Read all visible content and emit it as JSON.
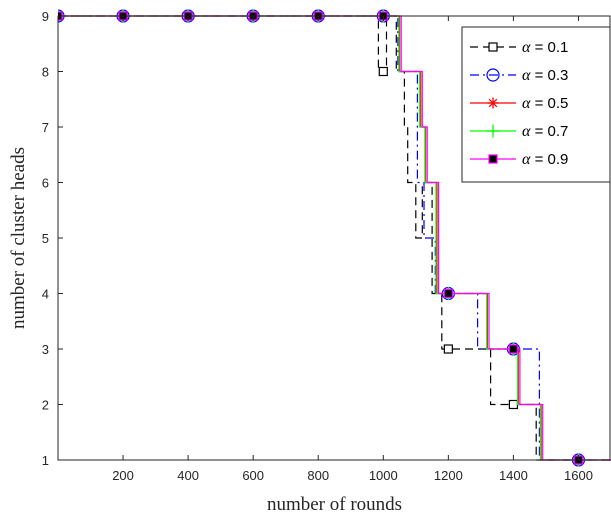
{
  "chart_data": {
    "type": "line",
    "title": "",
    "xlabel": "number of rounds",
    "ylabel": "number of cluster heads",
    "xlim": [
      0,
      1700
    ],
    "ylim": [
      1,
      9
    ],
    "x_ticks": [
      200,
      400,
      600,
      800,
      1000,
      1200,
      1400,
      1600
    ],
    "x_tick_labels": [
      "200",
      "400",
      "600",
      "800",
      "1000",
      "1200",
      "1400",
      "1600"
    ],
    "y_ticks": [
      1,
      2,
      3,
      4,
      5,
      6,
      7,
      8,
      9
    ],
    "y_tick_labels": [
      "1",
      "2",
      "3",
      "4",
      "5",
      "6",
      "7",
      "8",
      "9"
    ],
    "grid": false,
    "legend_position": "top-right",
    "series": [
      {
        "name": "α = 0.1",
        "alpha_symbol": "α",
        "value_text": "= 0.1",
        "color": "#000000",
        "dash": "dashed",
        "marker": "open-square",
        "x": [
          0,
          985,
          985,
          1010,
          1010,
          1040,
          1040,
          1065,
          1065,
          1075,
          1075,
          1100,
          1100,
          1120,
          1120,
          1150,
          1150,
          1180,
          1180,
          1200,
          1200,
          1330,
          1330,
          1400,
          1400,
          1470,
          1470,
          1700
        ],
        "y": [
          9,
          9,
          8,
          8,
          9,
          9,
          8,
          8,
          7,
          7,
          6,
          6,
          5,
          5,
          6,
          6,
          4,
          4,
          3,
          3,
          3,
          3,
          2,
          2,
          2,
          2,
          1,
          1
        ],
        "marker_x": [
          0,
          200,
          400,
          600,
          800,
          1000,
          1200,
          1400,
          1600
        ],
        "marker_y": [
          9,
          9,
          9,
          9,
          9,
          8,
          3,
          2,
          1
        ]
      },
      {
        "name": "α = 0.3",
        "alpha_symbol": "α",
        "value_text": "= 0.3",
        "color": "#0000ff",
        "dash": "dash-dot",
        "marker": "open-circle",
        "x": [
          0,
          1045,
          1045,
          1105,
          1105,
          1125,
          1125,
          1160,
          1160,
          1290,
          1290,
          1410,
          1410,
          1480,
          1480,
          1700
        ],
        "y": [
          9,
          9,
          8,
          8,
          6,
          6,
          5,
          5,
          4,
          4,
          3,
          3,
          3,
          3,
          1,
          1
        ],
        "marker_x": [
          0,
          200,
          400,
          600,
          800,
          1000,
          1200,
          1400,
          1600
        ],
        "marker_y": [
          9,
          9,
          9,
          9,
          9,
          9,
          4,
          3,
          1
        ]
      },
      {
        "name": "α = 0.5",
        "alpha_symbol": "α",
        "value_text": "= 0.5",
        "color": "#ff0000",
        "dash": "solid",
        "marker": "asterisk",
        "x": [
          0,
          1050,
          1050,
          1115,
          1115,
          1130,
          1130,
          1165,
          1165,
          1320,
          1320,
          1415,
          1415,
          1485,
          1485,
          1700
        ],
        "y": [
          9,
          9,
          8,
          8,
          7,
          7,
          6,
          6,
          4,
          4,
          3,
          3,
          2,
          2,
          1,
          1
        ],
        "marker_x": [
          0,
          200,
          400,
          600,
          800,
          1000,
          1200,
          1400,
          1600
        ],
        "marker_y": [
          9,
          9,
          9,
          9,
          9,
          9,
          4,
          3,
          1
        ]
      },
      {
        "name": "α = 0.7",
        "alpha_symbol": "α",
        "value_text": "= 0.7",
        "color": "#00ff00",
        "dash": "solid",
        "marker": "plus",
        "x": [
          0,
          1048,
          1048,
          1112,
          1112,
          1128,
          1128,
          1162,
          1162,
          1318,
          1318,
          1413,
          1413,
          1483,
          1483,
          1700
        ],
        "y": [
          9,
          9,
          8,
          8,
          7,
          7,
          6,
          6,
          4,
          4,
          3,
          3,
          2,
          2,
          1,
          1
        ],
        "marker_x": [
          0,
          200,
          400,
          600,
          800,
          1000,
          1200,
          1400,
          1600
        ],
        "marker_y": [
          9,
          9,
          9,
          9,
          9,
          9,
          4,
          3,
          1
        ]
      },
      {
        "name": "α = 0.9",
        "alpha_symbol": "α",
        "value_text": "= 0.9",
        "color": "#ff00ff",
        "dash": "solid",
        "marker": "filled-square",
        "x": [
          0,
          1055,
          1055,
          1120,
          1120,
          1135,
          1135,
          1170,
          1170,
          1325,
          1325,
          1420,
          1420,
          1490,
          1490,
          1700
        ],
        "y": [
          9,
          9,
          8,
          8,
          7,
          7,
          6,
          6,
          4,
          4,
          3,
          3,
          2,
          2,
          1,
          1
        ],
        "marker_x": [
          0,
          200,
          400,
          600,
          800,
          1000,
          1200,
          1400,
          1600
        ],
        "marker_y": [
          9,
          9,
          9,
          9,
          9,
          9,
          4,
          3,
          1
        ]
      }
    ]
  }
}
